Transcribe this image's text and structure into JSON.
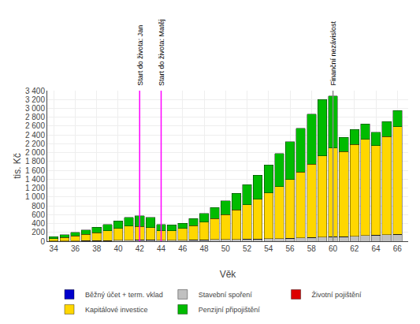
{
  "chart_data": {
    "type": "bar",
    "stacked": true,
    "x": [
      34,
      35,
      36,
      37,
      38,
      39,
      40,
      41,
      42,
      43,
      44,
      45,
      46,
      47,
      48,
      49,
      50,
      51,
      52,
      53,
      54,
      55,
      56,
      57,
      58,
      59,
      60,
      61,
      62,
      63,
      64,
      65,
      66
    ],
    "series": [
      {
        "name": "Běžný účet + term. vklad",
        "color": "#0000CC",
        "values": [
          0,
          0,
          0,
          0,
          0,
          0,
          0,
          0,
          0,
          0,
          0,
          0,
          0,
          0,
          0,
          0,
          0,
          0,
          0,
          0,
          0,
          0,
          0,
          0,
          0,
          0,
          0,
          0,
          0,
          0,
          0,
          0,
          0
        ]
      },
      {
        "name": "Stavební spoření",
        "color": "#C0C0C0",
        "values": [
          3,
          5,
          8,
          10,
          13,
          16,
          20,
          24,
          28,
          30,
          20,
          22,
          25,
          28,
          32,
          36,
          40,
          44,
          48,
          52,
          56,
          62,
          68,
          75,
          82,
          90,
          98,
          105,
          115,
          125,
          135,
          145,
          160
        ]
      },
      {
        "name": "Životní pojištění",
        "color": "#DD0000",
        "values": [
          0,
          0,
          0,
          0,
          0,
          0,
          0,
          0,
          0,
          0,
          0,
          0,
          0,
          0,
          0,
          0,
          0,
          0,
          0,
          0,
          0,
          0,
          0,
          0,
          0,
          0,
          0,
          0,
          0,
          0,
          0,
          0,
          0
        ]
      },
      {
        "name": "Kapitálové investice",
        "color": "#FFD700",
        "values": [
          55,
          80,
          110,
          145,
          180,
          220,
          265,
          315,
          310,
          280,
          220,
          215,
          265,
          325,
          400,
          475,
          565,
          665,
          775,
          900,
          1035,
          1175,
          1325,
          1490,
          1660,
          1840,
          2010,
          1920,
          2070,
          2175,
          2025,
          2220,
          2430
        ]
      },
      {
        "name": "Penzijní připojištění",
        "color": "#00BB00",
        "values": [
          45,
          60,
          80,
          100,
          120,
          145,
          170,
          200,
          235,
          230,
          140,
          130,
          115,
          155,
          200,
          250,
          305,
          375,
          455,
          540,
          635,
          740,
          855,
          985,
          1125,
          1270,
          1170,
          320,
          335,
          345,
          300,
          340,
          365
        ]
      }
    ],
    "xlabel": "Věk",
    "ylabel": "tis. Kč",
    "xlim": [
      33.4,
      67
    ],
    "xticks": [
      34,
      36,
      38,
      40,
      42,
      44,
      46,
      48,
      50,
      52,
      54,
      56,
      58,
      60,
      62,
      64,
      66
    ],
    "ylim": [
      0,
      3400
    ],
    "yticks": [
      0,
      200,
      400,
      600,
      800,
      {
        "value": 1000,
        "label": "1 000"
      },
      {
        "value": 1200,
        "label": "1 200"
      },
      {
        "value": 1400,
        "label": "1 400"
      },
      {
        "value": 1600,
        "label": "1 600"
      },
      {
        "value": 1800,
        "label": "1 800"
      },
      {
        "value": 2000,
        "label": "2 000"
      },
      {
        "value": 2200,
        "label": "2 200"
      },
      {
        "value": 2400,
        "label": "2 400"
      },
      {
        "value": 2600,
        "label": "2 600"
      },
      {
        "value": 2800,
        "label": "2 800"
      },
      {
        "value": 3000,
        "label": "3 000"
      },
      {
        "value": 3200,
        "label": "3 200"
      },
      {
        "value": 3400,
        "label": "3 400"
      }
    ],
    "grid": true,
    "legend": "bottom",
    "annotations": [
      {
        "x": 42,
        "text": "Start do života: Jan",
        "color": "#FF00FF"
      },
      {
        "x": 44,
        "text": "Start do života: Matěj",
        "color": "#FF00FF"
      },
      {
        "x": 60,
        "text": "Finanční nezávislost",
        "color": "#888888"
      }
    ]
  }
}
